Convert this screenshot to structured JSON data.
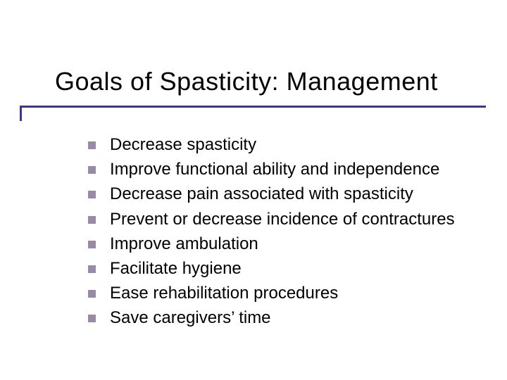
{
  "slide": {
    "title": "Goals of Spasticity:  Management",
    "title_color": "#000000",
    "title_fontsize": 36,
    "underline_color": "#3a3a8a",
    "bullet_color": "#9a8aa8",
    "bullet_size": 11,
    "body_fontsize": 24,
    "body_color": "#000000",
    "background_color": "#ffffff",
    "items": [
      "Decrease spasticity",
      "Improve functional ability and independence",
      "Decrease pain associated with spasticity",
      "Prevent or decrease incidence of contractures",
      "Improve ambulation",
      "Facilitate hygiene",
      "Ease rehabilitation procedures",
      "Save caregivers’ time"
    ]
  }
}
